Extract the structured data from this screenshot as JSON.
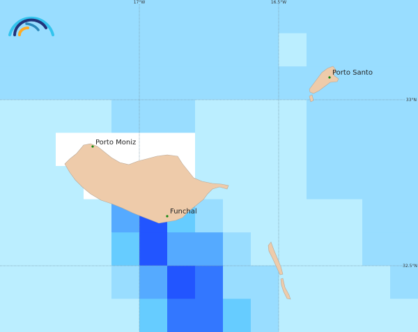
{
  "map": {
    "palette": {
      "0": "#99ddff",
      "1": "#bbeeff",
      "2": "#ffffff",
      "3": "#66ccff",
      "4": "#55aaff",
      "5": "#3377ff",
      "6": "#2255ff"
    },
    "grid_levels": [
      [
        0,
        0,
        0,
        0,
        0,
        0,
        0,
        0,
        0,
        0,
        0,
        0,
        0,
        0,
        0
      ],
      [
        0,
        0,
        0,
        0,
        0,
        0,
        0,
        0,
        0,
        0,
        1,
        0,
        0,
        0,
        0
      ],
      [
        0,
        0,
        0,
        0,
        0,
        0,
        0,
        0,
        0,
        0,
        0,
        0,
        0,
        0,
        0
      ],
      [
        1,
        1,
        1,
        1,
        0,
        0,
        0,
        1,
        1,
        1,
        1,
        0,
        0,
        0,
        0
      ],
      [
        1,
        1,
        2,
        2,
        2,
        2,
        2,
        1,
        1,
        1,
        1,
        0,
        0,
        0,
        0
      ],
      [
        1,
        1,
        1,
        2,
        2,
        2,
        2,
        1,
        1,
        1,
        1,
        0,
        0,
        0,
        0
      ],
      [
        1,
        1,
        1,
        1,
        4,
        6,
        3,
        0,
        1,
        1,
        1,
        1,
        1,
        0,
        0
      ],
      [
        1,
        1,
        1,
        1,
        3,
        6,
        4,
        4,
        0,
        1,
        1,
        1,
        1,
        0,
        0
      ],
      [
        1,
        1,
        1,
        1,
        0,
        4,
        6,
        5,
        0,
        0,
        1,
        1,
        1,
        1,
        0
      ],
      [
        1,
        1,
        1,
        1,
        1,
        3,
        5,
        5,
        3,
        0,
        1,
        1,
        1,
        1,
        1
      ]
    ],
    "graticule": {
      "longitudes": [
        "17°W",
        "16.5°W"
      ],
      "latitudes": [
        "33°N",
        "32.5°N"
      ]
    },
    "land_color": "#eecbaa",
    "cities": [
      {
        "name": "Porto Moniz"
      },
      {
        "name": "Funchal"
      },
      {
        "name": "Porto Santo"
      }
    ]
  }
}
